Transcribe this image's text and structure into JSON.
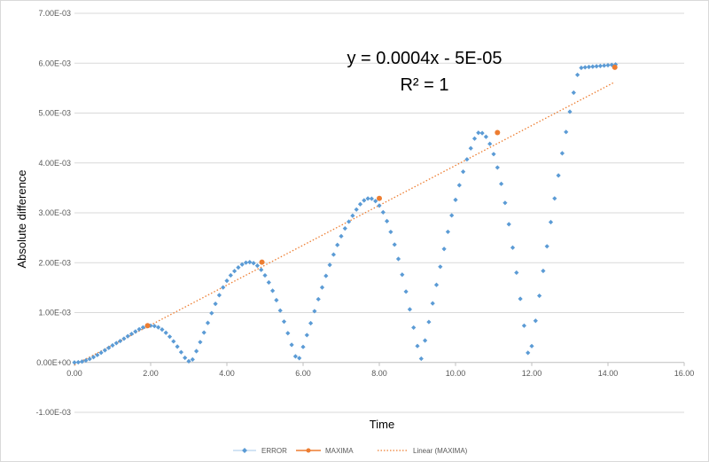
{
  "chart_data": {
    "type": "scatter",
    "title": "",
    "xlabel": "Time",
    "ylabel": "Absolute difference",
    "xlim": [
      0,
      16
    ],
    "ylim": [
      -0.001,
      0.007
    ],
    "grid": "horizontal",
    "legend_position": "bottom",
    "x_ticks": [
      "0.00",
      "2.00",
      "4.00",
      "6.00",
      "8.00",
      "10.00",
      "12.00",
      "14.00",
      "16.00"
    ],
    "y_ticks": [
      "-1.00E-03",
      "0.00E+00",
      "1.00E-03",
      "2.00E-03",
      "3.00E-03",
      "4.00E-03",
      "5.00E-03",
      "6.00E-03",
      "7.00E-03"
    ],
    "series": [
      {
        "name": "ERROR",
        "color": "#5b9bd5",
        "marker": "diamond",
        "x": [
          0.0,
          0.1,
          0.2,
          0.3,
          0.4,
          0.5,
          0.6,
          0.7,
          0.8,
          0.9,
          1.0,
          1.1,
          1.2,
          1.3,
          1.4,
          1.5,
          1.6,
          1.7,
          1.8,
          1.9,
          2.0,
          2.1,
          2.2,
          2.3,
          2.4,
          2.5,
          2.6,
          2.7,
          2.8,
          2.9,
          3.0,
          3.1,
          3.2,
          3.3,
          3.4,
          3.5,
          3.6,
          3.7,
          3.8,
          3.9,
          4.0,
          4.1,
          4.2,
          4.3,
          4.4,
          4.5,
          4.6,
          4.7,
          4.8,
          4.9,
          5.0,
          5.1,
          5.2,
          5.3,
          5.4,
          5.5,
          5.6,
          5.7,
          5.8,
          5.9,
          6.0,
          6.1,
          6.2,
          6.3,
          6.4,
          6.5,
          6.6,
          6.7,
          6.8,
          6.9,
          7.0,
          7.1,
          7.2,
          7.3,
          7.4,
          7.5,
          7.6,
          7.7,
          7.8,
          7.9,
          8.0,
          8.1,
          8.2,
          8.3,
          8.4,
          8.5,
          8.6,
          8.7,
          8.8,
          8.9,
          9.0,
          9.1,
          9.2,
          9.3,
          9.4,
          9.5,
          9.6,
          9.7,
          9.8,
          9.9,
          10.0,
          10.1,
          10.2,
          10.3,
          10.4,
          10.5,
          10.6,
          10.7,
          10.8,
          10.9,
          11.0,
          11.1,
          11.2,
          11.3,
          11.4,
          11.5,
          11.6,
          11.7,
          11.8,
          11.9,
          12.0,
          12.1,
          12.2,
          12.3,
          12.4,
          12.5,
          12.6,
          12.7,
          12.8,
          12.9,
          13.0,
          13.1,
          13.2,
          13.3,
          13.4,
          13.5,
          13.6,
          13.7,
          13.8,
          13.9,
          14.0,
          14.1,
          14.2
        ],
        "y": [
          0.0,
          5e-06,
          1.8e-05,
          4e-05,
          7e-05,
          0.000107,
          0.00015,
          0.000196,
          0.000245,
          0.000294,
          0.000342,
          0.000388,
          0.00043,
          0.000477,
          0.000527,
          0.000572,
          0.00062,
          0.000666,
          0.000702,
          0.000727,
          0.000737,
          0.00073,
          0.000704,
          0.00066,
          0.000596,
          0.000517,
          0.000423,
          0.000318,
          0.000206,
          9.3e-05,
          2.5e-05,
          6e-05,
          0.000227,
          0.000408,
          0.000599,
          0.000794,
          0.000988,
          0.001175,
          0.001349,
          0.001504,
          0.001638,
          0.001747,
          0.001832,
          0.001905,
          0.001965,
          0.002001,
          0.002011,
          0.001991,
          0.00194,
          0.001858,
          0.001746,
          0.001605,
          0.001438,
          0.001249,
          0.001041,
          0.000819,
          0.000587,
          0.000353,
          0.000122,
          8.7e-05,
          0.000312,
          0.000548,
          0.000787,
          0.001028,
          0.001268,
          0.001505,
          0.001735,
          0.001955,
          0.002163,
          0.002356,
          0.002531,
          0.002687,
          0.002823,
          0.002942,
          0.003066,
          0.003174,
          0.003249,
          0.003287,
          0.003283,
          0.003236,
          0.003145,
          0.003011,
          0.002834,
          0.002617,
          0.002363,
          0.002076,
          0.00176,
          0.001421,
          0.001065,
          0.000699,
          0.00033,
          7.5e-05,
          0.00044,
          0.000812,
          0.001185,
          0.001555,
          0.001919,
          0.002275,
          0.002619,
          0.002948,
          0.00326,
          0.003553,
          0.003824,
          0.004072,
          0.004294,
          0.004488,
          0.004604,
          0.004598,
          0.004524,
          0.004383,
          0.004177,
          0.003908,
          0.003581,
          0.003199,
          0.002771,
          0.002302,
          0.001801,
          0.001276,
          0.000737,
          0.000193,
          0.000328,
          0.000835,
          0.001337,
          0.001835,
          0.002328,
          0.002813,
          0.003288,
          0.003749,
          0.004194,
          0.004621,
          0.005027,
          0.005409,
          0.005766,
          0.005907,
          0.005917,
          0.005924,
          0.005931,
          0.005938,
          0.005945,
          0.005952,
          0.005959,
          0.005966,
          0.005973
        ]
      },
      {
        "name": "MAXIMA",
        "color": "#ed7d31",
        "marker": "circle",
        "x": [
          1.92,
          4.92,
          8.0,
          11.1,
          14.18
        ],
        "y": [
          0.000737,
          0.002011,
          0.00329,
          0.004608,
          0.005917
        ]
      },
      {
        "name": "Linear (MAXIMA)",
        "color": "#ed7d31",
        "style": "dotted",
        "x": [
          0.0,
          14.18
        ],
        "y": [
          -5e-05,
          0.005622
        ]
      }
    ],
    "annotations": {
      "equation": "y = 0.0004x - 5E-05",
      "r_squared": "R² = 1"
    }
  }
}
